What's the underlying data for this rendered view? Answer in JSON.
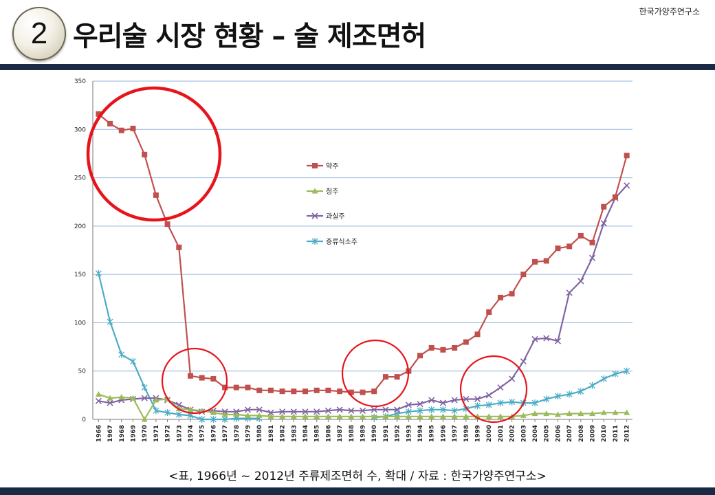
{
  "header": {
    "badge_number": "2",
    "title": "우리술 시장 현황 – 술 제조면허",
    "org": "한국가양주연구소"
  },
  "caption": "<표, 1966년 ~ 2012년 주류제조면허 수, 확대 / 자료 : 한국가양주연구소>",
  "colors": {
    "accent_bar": "#1b2a44",
    "annotation_circle": "#e8141b",
    "grid": "#8fb3d9"
  },
  "chart_data": {
    "type": "line",
    "title": "",
    "xlabel": "",
    "ylabel": "",
    "ylim": [
      0,
      350
    ],
    "yticks": [
      0,
      50,
      100,
      150,
      200,
      250,
      300,
      350
    ],
    "grid": true,
    "legend_position": "center",
    "x": [
      "1966",
      "1967",
      "1968",
      "1969",
      "1970",
      "1971",
      "1972",
      "1973",
      "1974",
      "1975",
      "1976",
      "1977",
      "1978",
      "1979",
      "1980",
      "1981",
      "1982",
      "1983",
      "1984",
      "1985",
      "1986",
      "1987",
      "1988",
      "1989",
      "1990",
      "1991",
      "1992",
      "1993",
      "1994",
      "1995",
      "1996",
      "1997",
      "1998",
      "1999",
      "2000",
      "2001",
      "2002",
      "2003",
      "2004",
      "2005",
      "2006",
      "2007",
      "2008",
      "2009",
      "2010",
      "2011",
      "2012"
    ],
    "series": [
      {
        "name": "약주",
        "color": "#c0504d",
        "marker": "square",
        "values": [
          316,
          306,
          299,
          301,
          274,
          232,
          202,
          178,
          45,
          43,
          42,
          33,
          33,
          33,
          30,
          30,
          29,
          29,
          29,
          30,
          30,
          29,
          28,
          28,
          29,
          44,
          44,
          50,
          66,
          74,
          72,
          74,
          80,
          88,
          111,
          126,
          130,
          150,
          163,
          164,
          177,
          179,
          190,
          183,
          220,
          230,
          273
        ]
      },
      {
        "name": "청주",
        "color": "#9bbb59",
        "marker": "triangle",
        "values": [
          26,
          22,
          23,
          22,
          0,
          20,
          21,
          11,
          10,
          9,
          7,
          5,
          5,
          4,
          4,
          3,
          3,
          3,
          3,
          3,
          3,
          3,
          3,
          3,
          3,
          3,
          3,
          3,
          3,
          3,
          3,
          3,
          3,
          3,
          3,
          3,
          3,
          4,
          6,
          6,
          5,
          6,
          6,
          6,
          7,
          7,
          7
        ]
      },
      {
        "name": "과실주",
        "color": "#8064a2",
        "marker": "x",
        "values": [
          19,
          17,
          20,
          21,
          22,
          22,
          20,
          15,
          10,
          8,
          9,
          8,
          8,
          10,
          10,
          7,
          8,
          8,
          8,
          8,
          9,
          10,
          9,
          9,
          10,
          10,
          10,
          15,
          16,
          20,
          17,
          20,
          21,
          21,
          25,
          33,
          42,
          60,
          83,
          84,
          81,
          131,
          143,
          167,
          203,
          229,
          242
        ]
      },
      {
        "name": "증류식소주",
        "color": "#4bacc6",
        "marker": "star",
        "values": [
          151,
          101,
          67,
          60,
          33,
          9,
          7,
          5,
          4,
          0,
          0,
          0,
          1,
          1,
          1,
          null,
          null,
          null,
          null,
          null,
          null,
          null,
          null,
          null,
          2,
          3,
          6,
          8,
          9,
          10,
          10,
          9,
          11,
          14,
          15,
          17,
          18,
          17,
          17,
          21,
          24,
          26,
          29,
          35,
          42,
          47,
          50
        ]
      }
    ]
  }
}
